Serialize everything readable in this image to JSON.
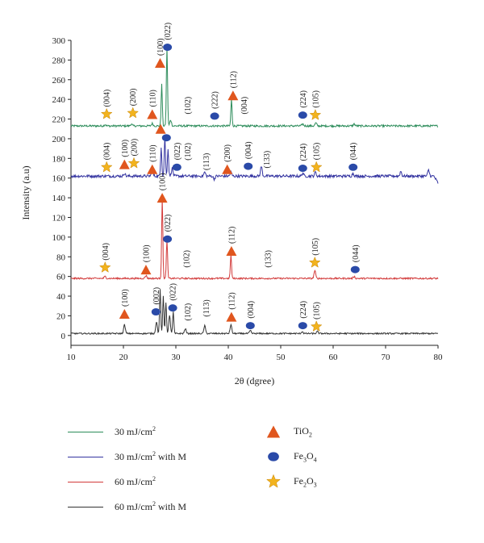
{
  "chart_data": {
    "type": "line",
    "xlabel": "2θ (dgree)",
    "ylabel": "Intensity (a.u)",
    "xlim": [
      10,
      80
    ],
    "ylim": [
      -10,
      300
    ],
    "x_ticks": [
      10,
      20,
      30,
      40,
      50,
      60,
      70,
      80
    ],
    "y_ticks": [
      0,
      20,
      40,
      60,
      80,
      100,
      120,
      140,
      160,
      180,
      200,
      220,
      240,
      260,
      280,
      300
    ],
    "grid": false,
    "legend_position": "bottom",
    "phases": [
      {
        "name": "TiO2",
        "label_base": "TiO",
        "label_sub": "2",
        "marker": "triangle",
        "color": "#e0561e"
      },
      {
        "name": "Fe3O4",
        "label_base": "Fe",
        "label_sub": "3",
        "label_mid": "O",
        "label_sub2": "4",
        "marker": "circle",
        "color": "#2a4aa8"
      },
      {
        "name": "Fe2O3",
        "label_base": "Fe",
        "label_sub": "2",
        "label_mid": "O",
        "label_sub2": "3",
        "marker": "star",
        "color": "#f2b31e"
      }
    ],
    "series": [
      {
        "name": "30 mJ/cm2 (green)",
        "legend_text": "30 mJ/cm",
        "legend_sup": "2",
        "color": "#2c8c5a",
        "baseline": 213,
        "noise": 1.0,
        "peaks": [
          {
            "x": 16.5,
            "h": 1.5
          },
          {
            "x": 21.5,
            "h": 2
          },
          {
            "x": 25.5,
            "h": 2.5
          },
          {
            "x": 27.3,
            "h": 42
          },
          {
            "x": 28.3,
            "h": 80
          },
          {
            "x": 29.0,
            "h": 6
          },
          {
            "x": 40.6,
            "h": 27
          },
          {
            "x": 54.2,
            "h": 2
          },
          {
            "x": 56.7,
            "h": 3
          },
          {
            "x": 64.0,
            "h": 2
          }
        ],
        "annotations": [
          {
            "x": 16.8,
            "y": 225,
            "text": "(004)",
            "marker": "star"
          },
          {
            "x": 21.8,
            "y": 226,
            "text": "(200)",
            "marker": "star"
          },
          {
            "x": 25.5,
            "y": 225,
            "text": "(110)",
            "marker": "triangle"
          },
          {
            "x": 27.0,
            "y": 277,
            "text": "(100)",
            "marker": "triangle"
          },
          {
            "x": 28.4,
            "y": 293,
            "text": "(022)",
            "marker": "circle"
          },
          {
            "x": 32.2,
            "y": 225,
            "text": "(102)",
            "marker": null
          },
          {
            "x": 37.4,
            "y": 223,
            "text": "(222)",
            "marker": "circle"
          },
          {
            "x": 40.9,
            "y": 244,
            "text": "(112)",
            "marker": "triangle"
          },
          {
            "x": 43.0,
            "y": 225,
            "text": "(004)",
            "marker": null
          },
          {
            "x": 54.2,
            "y": 224,
            "text": "(224)",
            "marker": "circle"
          },
          {
            "x": 56.6,
            "y": 224,
            "text": "(105)",
            "marker": "star"
          }
        ]
      },
      {
        "name": "30 mJ/cm2 with M (blue)",
        "legend_text": "30 mJ/cm",
        "legend_sup": "2",
        "legend_suffix": " with M",
        "color": "#3333a0",
        "baseline": 162,
        "noise": 1.4,
        "peaks": [
          {
            "x": 20.2,
            "h": 3
          },
          {
            "x": 25.5,
            "h": 5
          },
          {
            "x": 27.2,
            "h": 30
          },
          {
            "x": 27.9,
            "h": 40
          },
          {
            "x": 28.5,
            "h": 28
          },
          {
            "x": 29.3,
            "h": 8
          },
          {
            "x": 35.5,
            "h": 4
          },
          {
            "x": 37.3,
            "h": -3
          },
          {
            "x": 40.5,
            "h": 4
          },
          {
            "x": 46.3,
            "h": 10
          },
          {
            "x": 54.2,
            "h": 3
          },
          {
            "x": 56.6,
            "h": 4
          },
          {
            "x": 63.8,
            "h": 3
          },
          {
            "x": 72.9,
            "h": 5
          },
          {
            "x": 78.2,
            "h": 6
          }
        ],
        "end_drop": {
          "x": 79.2,
          "to": 155
        },
        "annotations": [
          {
            "x": 16.8,
            "y": 171,
            "text": "(004)",
            "marker": "star"
          },
          {
            "x": 20.2,
            "y": 174,
            "text": "(100)",
            "marker": "triangle"
          },
          {
            "x": 22.0,
            "y": 175,
            "text": "(200)",
            "marker": "star"
          },
          {
            "x": 25.5,
            "y": 169,
            "text": "(110)",
            "marker": "triangle"
          },
          {
            "x": 27.1,
            "y": 210,
            "text": "",
            "marker": "triangle"
          },
          {
            "x": 28.2,
            "y": 201,
            "text": "",
            "marker": "circle"
          },
          {
            "x": 30.2,
            "y": 171,
            "text": "(022)",
            "marker": "circle"
          },
          {
            "x": 32.2,
            "y": 178,
            "text": "(102)",
            "marker": null
          },
          {
            "x": 35.8,
            "y": 168,
            "text": "(113)",
            "marker": null
          },
          {
            "x": 39.8,
            "y": 169,
            "text": "(200)",
            "marker": "triangle"
          },
          {
            "x": 43.8,
            "y": 172,
            "text": "(004)",
            "marker": "circle"
          },
          {
            "x": 47.3,
            "y": 170,
            "text": "(133)",
            "marker": null
          },
          {
            "x": 54.2,
            "y": 170,
            "text": "(224)",
            "marker": "circle"
          },
          {
            "x": 56.8,
            "y": 171,
            "text": "(105)",
            "marker": "star"
          },
          {
            "x": 63.8,
            "y": 171,
            "text": "(044)",
            "marker": "circle"
          }
        ]
      },
      {
        "name": "60 mJ/cm2 (red)",
        "legend_text": "60 mJ/cm",
        "legend_sup": "2",
        "color": "#d23a3a",
        "baseline": 58,
        "noise": 0.8,
        "peaks": [
          {
            "x": 16.5,
            "h": 2
          },
          {
            "x": 24.3,
            "h": 3
          },
          {
            "x": 27.4,
            "h": 82
          },
          {
            "x": 28.3,
            "h": 40
          },
          {
            "x": 40.5,
            "h": 24
          },
          {
            "x": 56.5,
            "h": 8
          },
          {
            "x": 64.0,
            "h": 2
          }
        ],
        "annotations": [
          {
            "x": 16.5,
            "y": 69,
            "text": "(004)",
            "marker": "star"
          },
          {
            "x": 24.3,
            "y": 67,
            "text": "(100)",
            "marker": "triangle"
          },
          {
            "x": 27.4,
            "y": 140,
            "text": "(100)",
            "marker": "triangle"
          },
          {
            "x": 28.4,
            "y": 98,
            "text": "(022)",
            "marker": "circle"
          },
          {
            "x": 32.0,
            "y": 69,
            "text": "(102)",
            "marker": null
          },
          {
            "x": 40.6,
            "y": 86,
            "text": "(112)",
            "marker": "triangle"
          },
          {
            "x": 47.5,
            "y": 69,
            "text": "(133)",
            "marker": null
          },
          {
            "x": 56.5,
            "y": 74,
            "text": "(105)",
            "marker": "star"
          },
          {
            "x": 64.2,
            "y": 67,
            "text": "(044)",
            "marker": "circle"
          }
        ]
      },
      {
        "name": "60 mJ/cm2 with M (black)",
        "legend_text": "60 mJ/cm",
        "legend_sup": "2",
        "legend_suffix": " with M",
        "color": "#333333",
        "baseline": 2,
        "noise": 0.7,
        "peaks": [
          {
            "x": 20.2,
            "h": 9
          },
          {
            "x": 26.3,
            "h": 12
          },
          {
            "x": 27.0,
            "h": 45
          },
          {
            "x": 27.6,
            "h": 38
          },
          {
            "x": 28.1,
            "h": 32
          },
          {
            "x": 28.8,
            "h": 18
          },
          {
            "x": 29.5,
            "h": 22
          },
          {
            "x": 31.8,
            "h": 5
          },
          {
            "x": 35.5,
            "h": 8
          },
          {
            "x": 40.5,
            "h": 9
          },
          {
            "x": 44.2,
            "h": 3
          },
          {
            "x": 54.1,
            "h": 2
          },
          {
            "x": 57.0,
            "h": 2
          }
        ],
        "annotations": [
          {
            "x": 20.2,
            "y": 22,
            "text": "(100)",
            "marker": "triangle"
          },
          {
            "x": 26.2,
            "y": 24,
            "text": "(002)",
            "marker": "circle"
          },
          {
            "x": 29.4,
            "y": 28,
            "text": "(022)",
            "marker": "circle"
          },
          {
            "x": 32.2,
            "y": 15,
            "text": "(102)",
            "marker": null
          },
          {
            "x": 35.8,
            "y": 19,
            "text": "(113)",
            "marker": null
          },
          {
            "x": 40.6,
            "y": 19,
            "text": "(112)",
            "marker": "triangle"
          },
          {
            "x": 44.2,
            "y": 10,
            "text": "(004)",
            "marker": "circle"
          },
          {
            "x": 54.2,
            "y": 10,
            "text": "(224)",
            "marker": "circle"
          },
          {
            "x": 56.8,
            "y": 9,
            "text": "(105)",
            "marker": "star"
          }
        ]
      }
    ]
  }
}
